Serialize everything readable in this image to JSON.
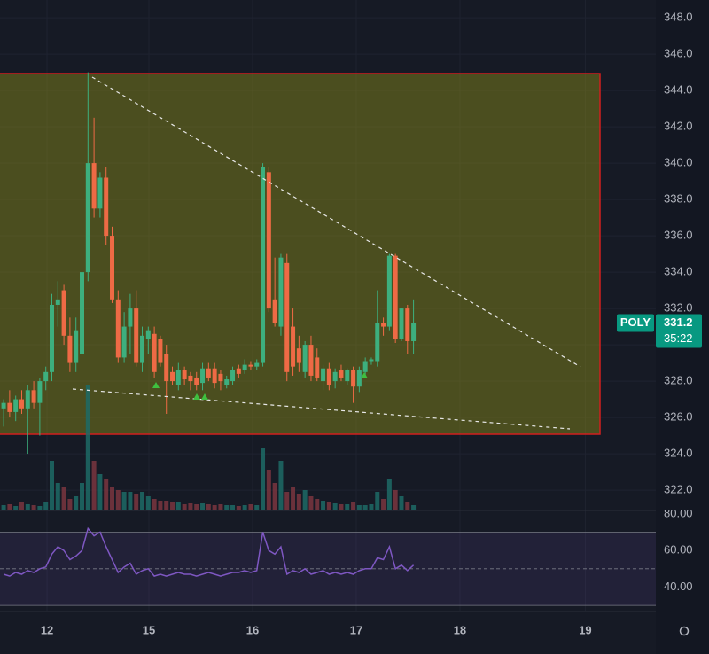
{
  "chart_data": {
    "type": "candlestick",
    "symbol": "POLY",
    "countdown": "35:22",
    "x": [
      0,
      1,
      2,
      3,
      4,
      5,
      6,
      7,
      8,
      9,
      10,
      11,
      12,
      13,
      14,
      15,
      16,
      17,
      18,
      19,
      20,
      21,
      22,
      23,
      24,
      25,
      26,
      27,
      28,
      29,
      30,
      31,
      32,
      33,
      34,
      35,
      36,
      37,
      38,
      39,
      40,
      41,
      42,
      43,
      44,
      45,
      46,
      47,
      48,
      49,
      50,
      51,
      52,
      53,
      54,
      55,
      56,
      57,
      58,
      59,
      60,
      61,
      62,
      63,
      64,
      65,
      66,
      67,
      68
    ],
    "open": [
      326.5,
      326.8,
      326.3,
      327,
      326.5,
      327.5,
      326.8,
      328,
      328.5,
      332.2,
      333,
      330.5,
      329,
      329.5,
      334,
      340,
      337.5,
      339.2,
      336,
      332.5,
      329.3,
      331,
      332,
      329,
      330.3,
      330.6,
      330.3,
      329.5,
      328.5,
      327.8,
      328.6,
      328.3,
      328.2,
      327.9,
      328.7,
      328.7,
      328.4,
      327.8,
      328,
      328.7,
      328.6,
      328.9,
      328.8,
      329,
      339.5,
      332.5,
      331,
      334.5,
      331,
      329.8,
      328.5,
      330,
      329.3,
      328,
      328.7,
      328,
      328.6,
      328,
      328.6,
      327.7,
      328.5,
      329.1,
      329.1,
      331.2,
      331,
      334.9,
      330.3,
      332,
      330.2
    ],
    "high": [
      327,
      327.5,
      327.2,
      327.5,
      327.8,
      328,
      328.2,
      328.8,
      332.8,
      333.5,
      333.3,
      331.5,
      331.5,
      334.5,
      345,
      342.5,
      339.5,
      339.8,
      336.5,
      333,
      331.8,
      332.8,
      333,
      331,
      331,
      331,
      330.5,
      330,
      328.8,
      329,
      328.8,
      328.5,
      328.5,
      329,
      329,
      329,
      328.6,
      328.3,
      328.8,
      328.9,
      329.2,
      329.1,
      329.2,
      340,
      339.8,
      334.8,
      335,
      335,
      332,
      330.5,
      330.2,
      330.5,
      329.8,
      328.9,
      329,
      328.7,
      328.9,
      328.7,
      328.8,
      328.8,
      329.3,
      329.3,
      333,
      331.5,
      335,
      335,
      332,
      332.2,
      332.5
    ],
    "low": [
      325.5,
      326,
      325.8,
      326.2,
      324,
      326.5,
      325,
      327.5,
      328,
      331,
      330,
      328.5,
      328.5,
      329,
      333.5,
      337,
      337,
      335.5,
      332.3,
      329,
      329,
      329.5,
      328.8,
      328.5,
      329.5,
      328.2,
      328.8,
      326.2,
      327.8,
      327.5,
      327.8,
      327.5,
      327.5,
      327.5,
      328,
      327.6,
      327.5,
      327.6,
      327.8,
      328.2,
      328.4,
      328.6,
      328.6,
      328.8,
      331.8,
      331,
      330.5,
      328,
      328.3,
      328.5,
      328.2,
      328,
      328,
      327.5,
      327.5,
      327.6,
      328,
      327.8,
      326.8,
      327.4,
      328.2,
      328.9,
      328.8,
      330.5,
      330.8,
      330.1,
      330.2,
      329.5,
      329.5
    ],
    "close": [
      326.8,
      326.3,
      327,
      326.5,
      327.5,
      326.8,
      328,
      328.5,
      332.2,
      332.5,
      330.5,
      329,
      330.8,
      334,
      340,
      337.5,
      339.2,
      336,
      332.5,
      329.3,
      331,
      332,
      329,
      330.5,
      330.8,
      328.5,
      329,
      328,
      328,
      328.6,
      328.1,
      328,
      327.8,
      328.7,
      328.2,
      327.9,
      328,
      328.1,
      328.6,
      328.4,
      328.9,
      328.8,
      329,
      339.8,
      332,
      331.2,
      334.8,
      328.5,
      328.8,
      329,
      330,
      328.3,
      328.2,
      328.7,
      327.8,
      328.5,
      328.2,
      328.6,
      327.7,
      328.6,
      329.1,
      329.2,
      331.2,
      331,
      334.9,
      330.3,
      332,
      330.2,
      331.2
    ],
    "volume": [
      5,
      6,
      4,
      8,
      6,
      5,
      4,
      8,
      55,
      30,
      25,
      12,
      15,
      30,
      140,
      55,
      40,
      35,
      25,
      22,
      20,
      20,
      18,
      20,
      15,
      12,
      10,
      10,
      8,
      8,
      6,
      7,
      6,
      7,
      6,
      5,
      6,
      5,
      5,
      4,
      5,
      6,
      5,
      70,
      45,
      30,
      55,
      20,
      25,
      18,
      22,
      15,
      12,
      10,
      8,
      7,
      6,
      6,
      8,
      5,
      5,
      6,
      20,
      12,
      35,
      22,
      15,
      8,
      5
    ],
    "volume_ylim": [
      0,
      150
    ],
    "up_color": "#3daf7e",
    "down_color": "#ee6a45",
    "xlim": [
      -0.6,
      108.2
    ],
    "xticks": [
      {
        "value": 7.2,
        "label": "12"
      },
      {
        "value": 24.1,
        "label": "15"
      },
      {
        "value": 41.3,
        "label": "16"
      },
      {
        "value": 58.5,
        "label": "17"
      },
      {
        "value": 75.7,
        "label": "18"
      },
      {
        "value": 96.5,
        "label": "19"
      }
    ],
    "ylim": [
      320.93,
      348.98
    ],
    "yticks": [
      {
        "value": 322,
        "label": "322.0"
      },
      {
        "value": 324,
        "label": "324.0"
      },
      {
        "value": 326,
        "label": "326.0"
      },
      {
        "value": 328,
        "label": "328.0"
      },
      {
        "value": 330,
        "label": "330.0"
      },
      {
        "value": 332,
        "label": "332.0"
      },
      {
        "value": 334,
        "label": "334.0"
      },
      {
        "value": 336,
        "label": "336.0"
      },
      {
        "value": 338,
        "label": "338.0"
      },
      {
        "value": 340,
        "label": "340.0"
      },
      {
        "value": 342,
        "label": "342.0"
      },
      {
        "value": 344,
        "label": "344.0"
      },
      {
        "value": 346,
        "label": "346.0"
      },
      {
        "value": 348,
        "label": "348.0"
      }
    ],
    "rsi": {
      "color": "#7e57c2",
      "values": [
        47,
        46,
        48,
        47,
        49,
        48,
        50,
        51,
        58,
        62,
        60,
        55,
        57,
        60,
        72,
        68,
        70,
        62,
        55,
        48,
        51,
        53,
        47,
        49,
        50,
        46,
        47,
        46,
        47,
        48,
        47,
        47,
        46,
        47,
        48,
        47,
        46,
        47,
        48,
        48,
        49,
        48,
        49,
        70,
        60,
        58,
        62,
        47,
        49,
        48,
        50,
        47,
        48,
        49,
        47,
        48,
        47,
        48,
        47,
        49,
        50,
        50,
        56,
        55,
        62,
        50,
        52,
        49,
        52
      ],
      "ylim": [
        28.6,
        81.4
      ],
      "yticks": [
        {
          "value": 40,
          "label": "40.00"
        },
        {
          "value": 60,
          "label": "60.00"
        },
        {
          "value": 80,
          "label": "80.00"
        }
      ],
      "band": [
        30,
        70
      ],
      "mid": 50
    }
  }
}
